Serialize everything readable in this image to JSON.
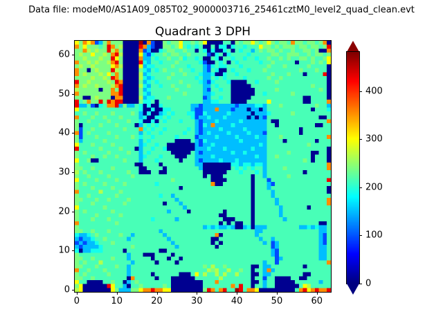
{
  "figure": {
    "annotation": "Data file: modeM0/AS1A09_085T02_9000003716_25461cztM0_level2_quad_clean.evt",
    "background": "#ffffff"
  },
  "chart_data": {
    "type": "heatmap",
    "title": "Quadrant 3 DPH",
    "xlabel": "",
    "ylabel": "",
    "x_ticks": [
      0,
      10,
      20,
      30,
      40,
      50,
      60
    ],
    "y_ticks": [
      0,
      10,
      20,
      30,
      40,
      50,
      60
    ],
    "grid_size": 64,
    "colormap": "jet",
    "vmin": 0,
    "vmax": 482,
    "colorbar_ticks": [
      0,
      100,
      200,
      300,
      400
    ],
    "colorbar_extend": "both",
    "colorbar_over_color": "#8b0000",
    "colorbar_under_color": "#000080",
    "value_levels": {
      "0": 8,
      "1": 95,
      "2": 150,
      "3": 190,
      "4": 215,
      "5": 240,
      "6": 265,
      "7": 300,
      "8": 355,
      "9": 430,
      "a": 468
    },
    "rows_top_to_bottom": [
      "7587812585550000a08100545574454570000440545575457545548554554580",
      "8575554598560000982100554574343400403303443444755454555455455459",
      "5586565596850000812003455445440430300340434424545545445445545008",
      "5655755658960000721344545544544441034034444344444554455544545545",
      "5565556559750000822434454453443400430443443443445445454455454457",
      "8556565568950000932443444544444310043404344444344544444044454547",
      "5655655557860000723344445444344421343344434444445444544444544440",
      "8550565559650000532434544454434421430043444344454444444454445440",
      "8565556575850000623444445445444322300344344444444544454440444490",
      "5555655659850000632344454444443422434344443444445445444444444440",
      "9556555565980000523434444454444321344430000443444454444444444440",
      "8565565556890000632443445444544422434440000044444444444444454440",
      "6555550558590000523444444544444421443440000004444454444444444540",
      "8555555558890000532444444445444422344440000004434444445444444440",
      "5500565550880000623344454444444412443440000044444444444440044440",
      "9458559598990000533404444444444422334440000444447444444440044448",
      "9224103488925224303003444444422122222222122223324445444444445442",
      "7444444444444444300300334444421122282221222022024444444444404443",
      "4454454445444454203002343444331132222232222202223444445444444444",
      "8444544544454444230033434444431223222322222020214444444444444004",
      "5445444454444544300304344434442122232222232222224004444444444448",
      "5044445444544440243434444444442132822223222222224404444444440044",
      "5144544444445444834344344444342122223222223222224444444404444444",
      "8145444454444444243443444443442123222232222322214444444404444444",
      "5144454444544454344344444344441222232222322223224445444444444448",
      "5244444544444444243444444000042132222222232222224444044444440444",
      "7444544445444444234434400000002122322222222222324444444444544444",
      "9444445444454440244344300000002223222322222232224444444444444440",
      "5454444454444544243444440000042122222223223222224444454444400440",
      "5444544544544444234443444000442222322222222223224454444444404440",
      "7445004444445444244434444404442122223222322222224444444445404440",
      "5444444444444440044440444444442200000003323323324444444444444448",
      "5544544445444444004444044444444200000004343434424444544444444448",
      "6454445444444544000440044444444400000044434443424444444440444444",
      "5445444454444454444444444444444404000444444404424444454444444444",
      "7444454444544444444444445444444444000044444404441444444444444449",
      "5454444544445444444434444444444444800444444404442144444444444444",
      "5444544445444444444444444404444444444444444404442444444444444440",
      "8444446444454444444444444444444444444444444404444244444444444440",
      "5445444444544444444443442444444444444444444404444244444444444444",
      "5544454454444544444444444244444444444444444404444424444444444448",
      "5444544444445444444444044424444444444444444404444424444444444448",
      "7444444544444444444444444442444444444444444404444442444444044444",
      "5454444445444444444444424444044444444044444404444442444444444444",
      "5444454444454444444444444444444444440044444404444442444444444444",
      "5444544454444444444344444244444444444000444404444444244444444444",
      "8444444444544444444444444444444444440404004404444444444444444004",
      "5444444444444444444444444444444423232232002302224444444422323224",
      "5544544454444444444442444444444444444444444442244444444444444224",
      "3223454444454424444444244444444444480444444442444444444444444214",
      "2122344544444244444444424444444444004444444444244244444444444214",
      "1212234445444444444444442444444444040444444444424124444444444214",
      "2122223444444454444444444244444444404444444444444124444444444224",
      "3022333444440444444440044444444444444444444444444214444444444224",
      "5444444444444244400044440444444444444444444444444214444444444224",
      "5544544445444244444044404404444444444444444444444412444444444224",
      "5454446444444424444404444044444444444444444444424414444444444448",
      "5544454444544244444444444444444454644544444400422444444440444444",
      "8445444544444244444444444444444446564464454404428244444444444444",
      "5454444454444244444044444400047464464644644400422444444440044444",
      "5544544444444084444404440000004444446444444404414400004400444444",
      "7440000445440245444444440000000044484444444400424400000444444244",
      "5700000097442044544444540000000044444448494404424400000047644444",
      "6700000007522255788988770000000059848944a94887000000000489789889"
    ]
  }
}
